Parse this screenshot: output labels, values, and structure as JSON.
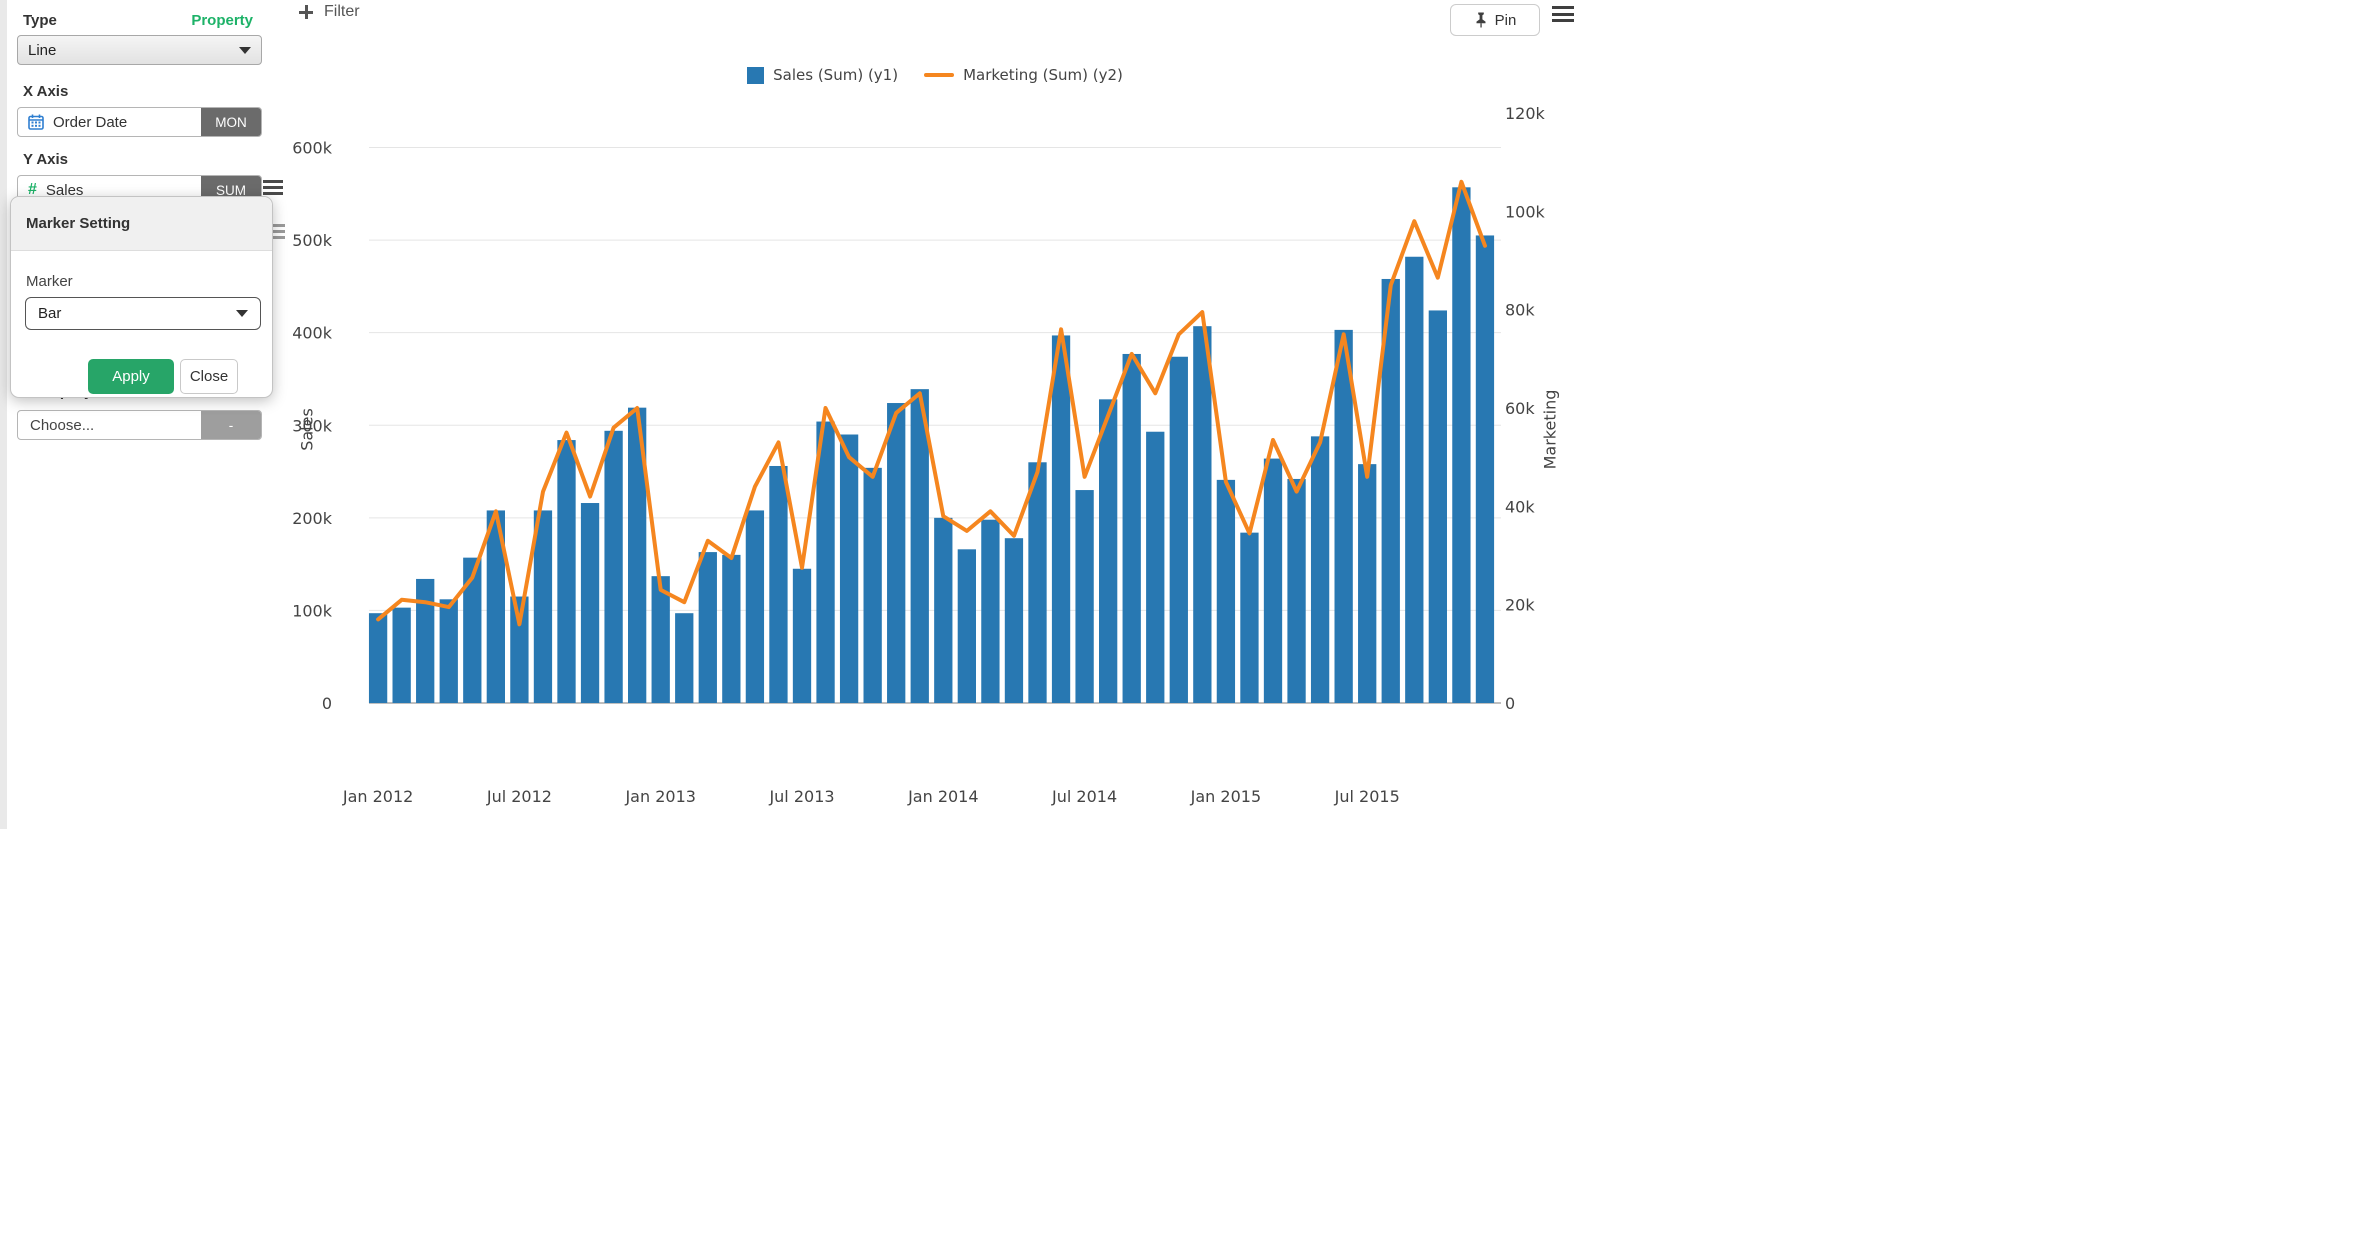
{
  "sidebar": {
    "type_label": "Type",
    "property_link": "Property",
    "type_value": "Line",
    "x_axis_label": "X Axis",
    "x_field": {
      "name": "Order Date",
      "modifier": "MON"
    },
    "y_axis_label": "Y Axis",
    "y_field": {
      "name": "Sales",
      "modifier": "SUM"
    },
    "group_by_label": "Group By",
    "choose_field": {
      "placeholder": "Choose...",
      "modifier": "-"
    }
  },
  "marker_popup": {
    "title": "Marker Setting",
    "marker_label": "Marker",
    "marker_value": "Bar",
    "apply_label": "Apply",
    "close_label": "Close"
  },
  "toolbar": {
    "filter_label": "Filter",
    "pin_label": "Pin"
  },
  "legend": [
    {
      "label": "Sales (Sum) (y1)",
      "color": "#2878b2",
      "swatch": "square"
    },
    {
      "label": "Marketing (Sum) (y2)",
      "color": "#f5861f",
      "swatch": "line"
    }
  ],
  "colors": {
    "bar": "#2878b2",
    "line": "#f5861f",
    "accent_green": "#1db268",
    "grid": "#e5e5e5",
    "axis_line": "#999999"
  },
  "chart_data": {
    "type": "bar",
    "note": "dual-axis combo: bars on y1 (Sales), line on y2 (Marketing), monthly Jan 2012 - Dec 2015",
    "categories": [
      "Jan 2012",
      "Feb 2012",
      "Mar 2012",
      "Apr 2012",
      "May 2012",
      "Jun 2012",
      "Jul 2012",
      "Aug 2012",
      "Sep 2012",
      "Oct 2012",
      "Nov 2012",
      "Dec 2012",
      "Jan 2013",
      "Feb 2013",
      "Mar 2013",
      "Apr 2013",
      "May 2013",
      "Jun 2013",
      "Jul 2013",
      "Aug 2013",
      "Sep 2013",
      "Oct 2013",
      "Nov 2013",
      "Dec 2013",
      "Jan 2014",
      "Feb 2014",
      "Mar 2014",
      "Apr 2014",
      "May 2014",
      "Jun 2014",
      "Jul 2014",
      "Aug 2014",
      "Sep 2014",
      "Oct 2014",
      "Nov 2014",
      "Dec 2014",
      "Jan 2015",
      "Feb 2015",
      "Mar 2015",
      "Apr 2015",
      "May 2015",
      "Jun 2015",
      "Jul 2015",
      "Aug 2015",
      "Sep 2015",
      "Oct 2015",
      "Nov 2015",
      "Dec 2015"
    ],
    "series": [
      {
        "name": "Sales (Sum)",
        "axis": "y1",
        "type": "bar",
        "color": "#2878b2",
        "values": [
          97000,
          103000,
          134000,
          112000,
          157000,
          208000,
          115000,
          208000,
          284000,
          216000,
          294000,
          319000,
          137000,
          97000,
          163000,
          160000,
          208000,
          256000,
          145000,
          304000,
          290000,
          254000,
          324000,
          339000,
          200000,
          166000,
          198000,
          178000,
          260000,
          397000,
          230000,
          328000,
          377000,
          293000,
          374000,
          407000,
          241000,
          184000,
          264000,
          242000,
          288000,
          403000,
          258000,
          458000,
          482000,
          424000,
          557000,
          505000
        ]
      },
      {
        "name": "Marketing (Sum)",
        "axis": "y2",
        "type": "line",
        "color": "#f5861f",
        "values": [
          17000,
          21000,
          20500,
          19500,
          25500,
          39000,
          16000,
          43000,
          55000,
          42000,
          56000,
          60000,
          23000,
          20500,
          33000,
          29500,
          44000,
          53000,
          27500,
          60000,
          50000,
          46000,
          59000,
          63000,
          38000,
          35000,
          39000,
          34000,
          47000,
          76000,
          46000,
          58500,
          71000,
          63000,
          75000,
          79500,
          45000,
          34500,
          53500,
          43000,
          53000,
          75000,
          46000,
          85000,
          98000,
          86500,
          106000,
          93000
        ]
      }
    ],
    "x_tick_labels": [
      "Jan 2012",
      "Jul 2012",
      "Jan 2013",
      "Jul 2013",
      "Jan 2014",
      "Jul 2014",
      "Jan 2015",
      "Jul 2015"
    ],
    "x_tick_step_months": 6,
    "y1": {
      "label": "Sales",
      "range": [
        0,
        600000
      ],
      "ticks": [
        "0",
        "100k",
        "200k",
        "300k",
        "400k",
        "500k",
        "600k"
      ]
    },
    "y2": {
      "label": "Marketing",
      "range": [
        0,
        120000
      ],
      "ticks": [
        "0",
        "20k",
        "40k",
        "60k",
        "80k",
        "100k",
        "120k"
      ]
    },
    "grid": "horizontal-only",
    "legend_position": "top-center"
  }
}
